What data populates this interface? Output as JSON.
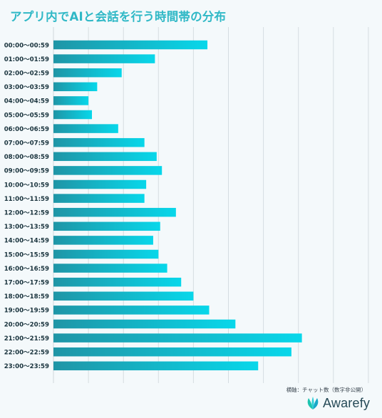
{
  "title": "アプリ内でAIと会話を行う時間帯の分布",
  "x_note": "横軸：チャット数（数字非公開）",
  "brand": {
    "name": "Awarefy",
    "logo_icon": "awarefy-leaf-logo-icon"
  },
  "colors": {
    "title": "#2fb8c6",
    "bar_start": "#1f95a6",
    "bar_end": "#08d7ea",
    "grid": "#d5dde1",
    "label": "#18323c",
    "background": "#f4f9fb"
  },
  "chart_data": {
    "type": "bar",
    "orientation": "horizontal",
    "title": "アプリ内でAIと会話を行う時間帯の分布",
    "xlabel": "横軸：チャット数（数字非公開）",
    "ylabel": "",
    "xlim": [
      0,
      9
    ],
    "grid": true,
    "x_tick_labels_shown": false,
    "categories": [
      "00:00〜00:59",
      "01:00〜01:59",
      "02:00〜02:59",
      "03:00〜03:59",
      "04:00〜04:59",
      "05:00〜05:59",
      "06:00〜06:59",
      "07:00〜07:59",
      "08:00〜08:59",
      "09:00〜09:59",
      "10:00〜10:59",
      "11:00〜11:59",
      "12:00〜12:59",
      "13:00〜13:59",
      "14:00〜14:59",
      "15:00〜15:59",
      "16:00〜16:59",
      "17:00〜17:59",
      "18:00〜18:59",
      "19:00〜19:59",
      "20:00〜20:59",
      "21:00〜21:59",
      "22:00〜22:59",
      "23:00〜23:59"
    ],
    "values": [
      4.4,
      2.9,
      1.95,
      1.25,
      1.0,
      1.1,
      1.85,
      2.6,
      2.95,
      3.1,
      2.65,
      2.6,
      3.5,
      3.05,
      2.85,
      3.0,
      3.25,
      3.65,
      4.0,
      4.45,
      5.2,
      7.1,
      6.8,
      5.85
    ]
  }
}
